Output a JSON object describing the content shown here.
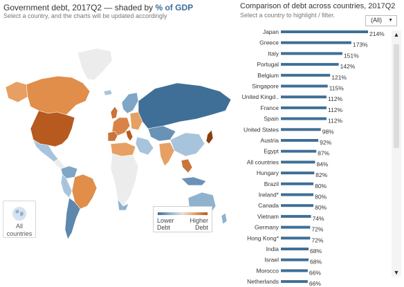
{
  "map_panel": {
    "title_prefix": "Government debt, 2017Q2 — shaded by ",
    "title_highlight": "% of GDP",
    "subtitle": "Select a country, and the charts will be updated accordingly",
    "all_button": {
      "line1": "All",
      "line2": "countries",
      "icon": "globe-icon"
    },
    "legend": {
      "low_line1": "Lower",
      "low_line2": "Debt",
      "high_line1": "Higher",
      "high_line2": "Debt"
    },
    "colors": {
      "low": "#3f6f97",
      "mid": "#e9dfd2",
      "high": "#b65a1f",
      "no_data": "#ececec"
    }
  },
  "bar_panel": {
    "title": "Comparison of debt across countries, 2017Q2",
    "subtitle": "Select a country to highlight / filter.",
    "filter_value": "(All)",
    "bar_color": "#3f6f97"
  },
  "chart_data": {
    "type": "bar",
    "orientation": "horizontal",
    "title": "Comparison of debt across countries, 2017Q2",
    "categories": [
      "Japan",
      "Greece",
      "Italy",
      "Portugal",
      "Belgium",
      "Singapore",
      "United Kingd..",
      "France",
      "Spain",
      "United States",
      "Austria",
      "Egypt",
      "All countries",
      "Hungary",
      "Brazil",
      "Ireland*",
      "Canada",
      "Vietnam",
      "Germany",
      "Hong Kong*",
      "India",
      "Israel",
      "Morocco",
      "Netherlands"
    ],
    "values": [
      214,
      173,
      151,
      142,
      121,
      115,
      112,
      112,
      112,
      98,
      92,
      87,
      84,
      82,
      80,
      80,
      80,
      74,
      72,
      72,
      68,
      68,
      66,
      66
    ],
    "labels": [
      "214%",
      "173%",
      "151%",
      "142%",
      "121%",
      "115%",
      "112%",
      "112%",
      "112%",
      "98%",
      "92%",
      "87%",
      "84%",
      "82%",
      "80%",
      "80%",
      "80%",
      "74%",
      "72%",
      "72%",
      "68%",
      "68%",
      "66%",
      "66%"
    ],
    "xlim": [
      0,
      214
    ]
  }
}
